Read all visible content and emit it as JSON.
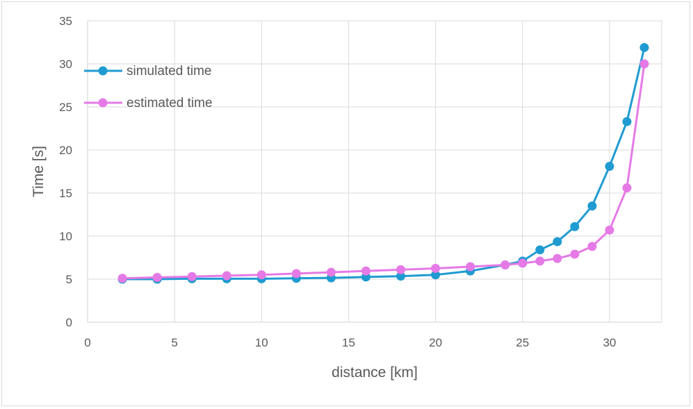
{
  "chart_data": {
    "type": "line",
    "title": "",
    "xlabel": "distance [km]",
    "ylabel": "Time [s]",
    "xlim": [
      0,
      33
    ],
    "ylim": [
      0,
      35
    ],
    "xticks": [
      0,
      5,
      10,
      15,
      20,
      25,
      30
    ],
    "yticks": [
      0,
      5,
      10,
      15,
      20,
      25,
      30,
      35
    ],
    "grid": true,
    "legend_position": "top-left",
    "series": [
      {
        "name": "simulated time",
        "color": "#1f9bd1",
        "x": [
          2,
          4,
          6,
          8,
          10,
          12,
          14,
          16,
          18,
          20,
          22,
          24,
          25,
          26,
          27,
          28,
          29,
          30,
          31,
          32
        ],
        "y": [
          5.0,
          5.0,
          5.05,
          5.05,
          5.05,
          5.1,
          5.15,
          5.25,
          5.35,
          5.5,
          5.95,
          6.65,
          7.1,
          8.4,
          9.35,
          11.1,
          13.5,
          18.1,
          23.3,
          31.9
        ]
      },
      {
        "name": "estimated time",
        "color": "#e57ae6",
        "x": [
          2,
          4,
          6,
          8,
          10,
          12,
          14,
          16,
          18,
          20,
          22,
          24,
          25,
          26,
          27,
          28,
          29,
          30,
          31,
          32
        ],
        "y": [
          5.1,
          5.2,
          5.3,
          5.4,
          5.5,
          5.65,
          5.8,
          5.95,
          6.1,
          6.25,
          6.45,
          6.65,
          6.85,
          7.1,
          7.4,
          7.9,
          8.8,
          10.7,
          15.6,
          30.0
        ]
      }
    ]
  }
}
